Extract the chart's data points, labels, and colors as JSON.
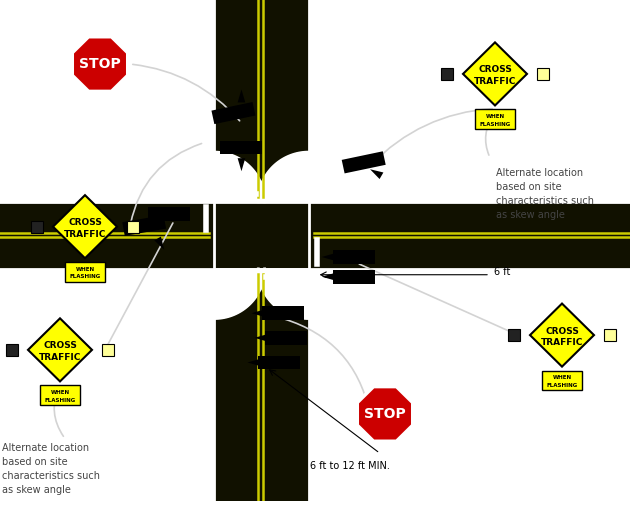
{
  "bg_color": "#ffffff",
  "road_color": "#111100",
  "road_dark": "#1a1a00",
  "road_edge_color": "#ffffff",
  "road_center_line_color": "#cccc00",
  "sign_yellow": "#ffff00",
  "stop_red": "#cc0000",
  "beacon_dark": "#222222",
  "beacon_lit": "#ffff99",
  "text_color": "#444444",
  "vcx": 0.415,
  "vrw": 0.075,
  "hcy": 0.47,
  "hrw": 0.07,
  "corner_r": 0.075,
  "dim_label_tr": "Alternate location\nbased on site\ncharacteristics such\nas skew angle",
  "dim_label_bl": "Alternate location\nbased on site\ncharacteristics such\nas skew angle",
  "dim_6ft": "6 ft",
  "dim_6_12ft": "6 ft to 12 ft MIN."
}
